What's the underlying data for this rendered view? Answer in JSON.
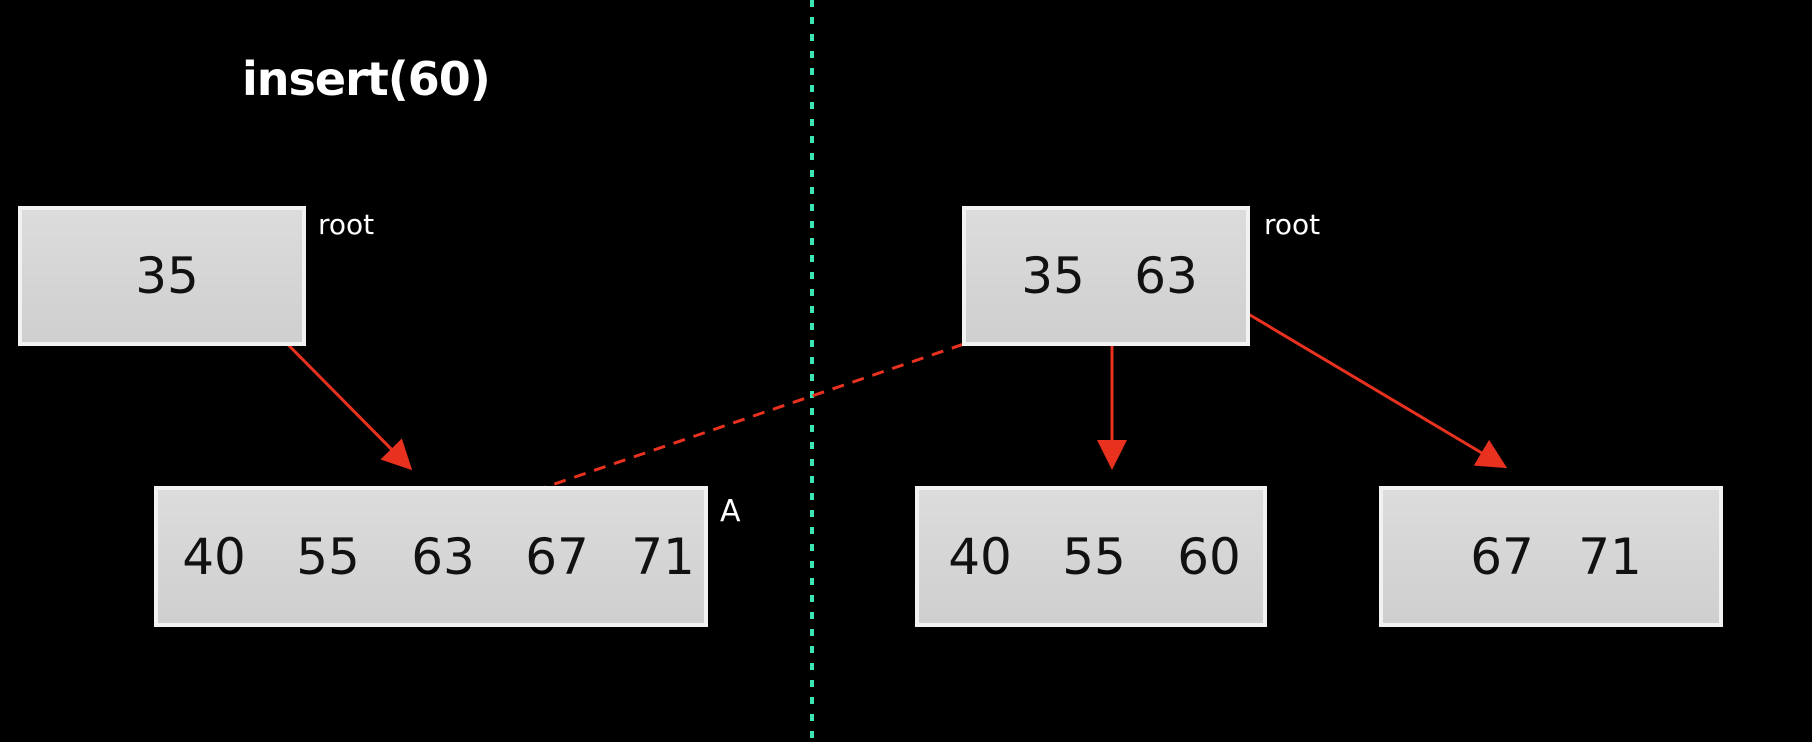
{
  "title": "insert(60)",
  "colors": {
    "background": "#000000",
    "node_fill": "#d6d6d6",
    "node_border": "#f2f2f2",
    "arrow": "#e8311f",
    "divider": "#3ce6b4",
    "text_dark": "#111111",
    "text_light": "#ffffff"
  },
  "before": {
    "root": {
      "keys": [
        "35"
      ],
      "label": "root"
    },
    "leaf": {
      "keys": [
        "40",
        "55",
        "63",
        "67",
        "71"
      ],
      "label": "A"
    }
  },
  "after": {
    "root": {
      "keys": [
        "35",
        "63"
      ],
      "label": "root"
    },
    "left_leaf": {
      "keys": [
        "40",
        "55",
        "60"
      ]
    },
    "right_leaf": {
      "keys": [
        "67",
        "71"
      ]
    }
  }
}
